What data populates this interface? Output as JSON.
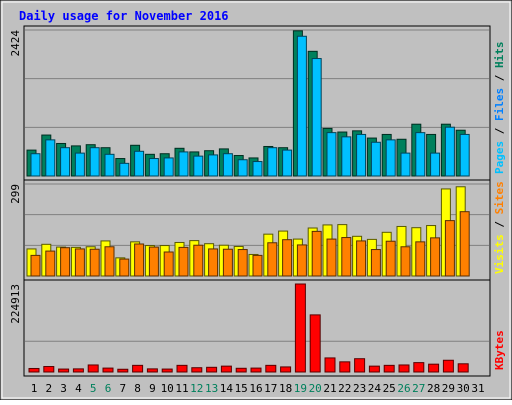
{
  "chart_data": {
    "type": "bar",
    "title": "Daily usage for November 2016",
    "categories": [
      "1",
      "2",
      "3",
      "4",
      "5",
      "6",
      "7",
      "8",
      "9",
      "10",
      "11",
      "12",
      "13",
      "14",
      "15",
      "16",
      "17",
      "18",
      "19",
      "20",
      "21",
      "22",
      "23",
      "24",
      "25",
      "26",
      "27",
      "28",
      "29",
      "30",
      "31"
    ],
    "weekend_days": [
      "5",
      "6",
      "12",
      "13",
      "19",
      "20",
      "26",
      "27"
    ],
    "panels": [
      {
        "ymax_label": "2424",
        "ylim": [
          0,
          2424
        ],
        "legend": [
          {
            "label": "Pages",
            "color": "#00c0ff"
          },
          {
            "label": "Files",
            "color": "#0080ff"
          },
          {
            "label": "Hits",
            "color": "#00805c"
          }
        ],
        "series": [
          {
            "name": "Hits",
            "color": "#00805c",
            "values": [
              430,
              680,
              540,
              500,
              520,
              470,
              290,
              510,
              360,
              370,
              460,
              400,
              420,
              450,
              340,
              300,
              490,
              470,
              2410,
              2070,
              790,
              730,
              750,
              630,
              690,
              610,
              860,
              690,
              860,
              760,
              0
            ]
          },
          {
            "name": "Pages",
            "color": "#00c0ff",
            "values": [
              370,
              600,
              470,
              380,
              470,
              360,
              210,
              410,
              290,
              300,
              400,
              330,
              350,
              370,
              270,
              240,
              470,
              430,
              2320,
              1950,
              720,
              650,
              690,
              560,
              600,
              380,
              720,
              380,
              810,
              690,
              0
            ]
          }
        ]
      },
      {
        "ymax_label": "299",
        "ylim": [
          0,
          299
        ],
        "legend": [
          {
            "label": "Visits",
            "color": "#ffff00"
          },
          {
            "label": "Sites",
            "color": "#ff8000"
          }
        ],
        "series": [
          {
            "name": "Visits",
            "color": "#ffff00",
            "values": [
              88,
              103,
              94,
              93,
              95,
              114,
              59,
              111,
              99,
              99,
              109,
              115,
              105,
              100,
              96,
              70,
              136,
              146,
              120,
              156,
              166,
              167,
              129,
              119,
              142,
              161,
              157,
              164,
              283,
              290,
              0
            ]
          },
          {
            "name": "Sites",
            "color": "#ff8000",
            "values": [
              67,
              81,
              92,
              88,
              87,
              95,
              55,
              104,
              94,
              78,
              93,
              100,
              88,
              87,
              86,
              67,
              108,
              118,
              101,
              145,
              120,
              125,
              114,
              86,
              113,
              95,
              111,
              124,
              180,
              209,
              0
            ]
          }
        ]
      },
      {
        "ymax_label": "224913",
        "ylim": [
          0,
          224913
        ],
        "legend": [
          {
            "label": "KBytes",
            "color": "#ff0000"
          }
        ],
        "series": [
          {
            "name": "KBytes",
            "color": "#ff0000",
            "values": [
              9000,
              14000,
              7500,
              8000,
              18000,
              10000,
              7000,
              17000,
              8000,
              7500,
              17000,
              11000,
              12000,
              15000,
              9500,
              10000,
              17000,
              13000,
              224913,
              146000,
              36000,
              26000,
              34000,
              15000,
              17000,
              18000,
              24000,
              20000,
              30000,
              21000,
              0
            ]
          }
        ]
      }
    ]
  }
}
